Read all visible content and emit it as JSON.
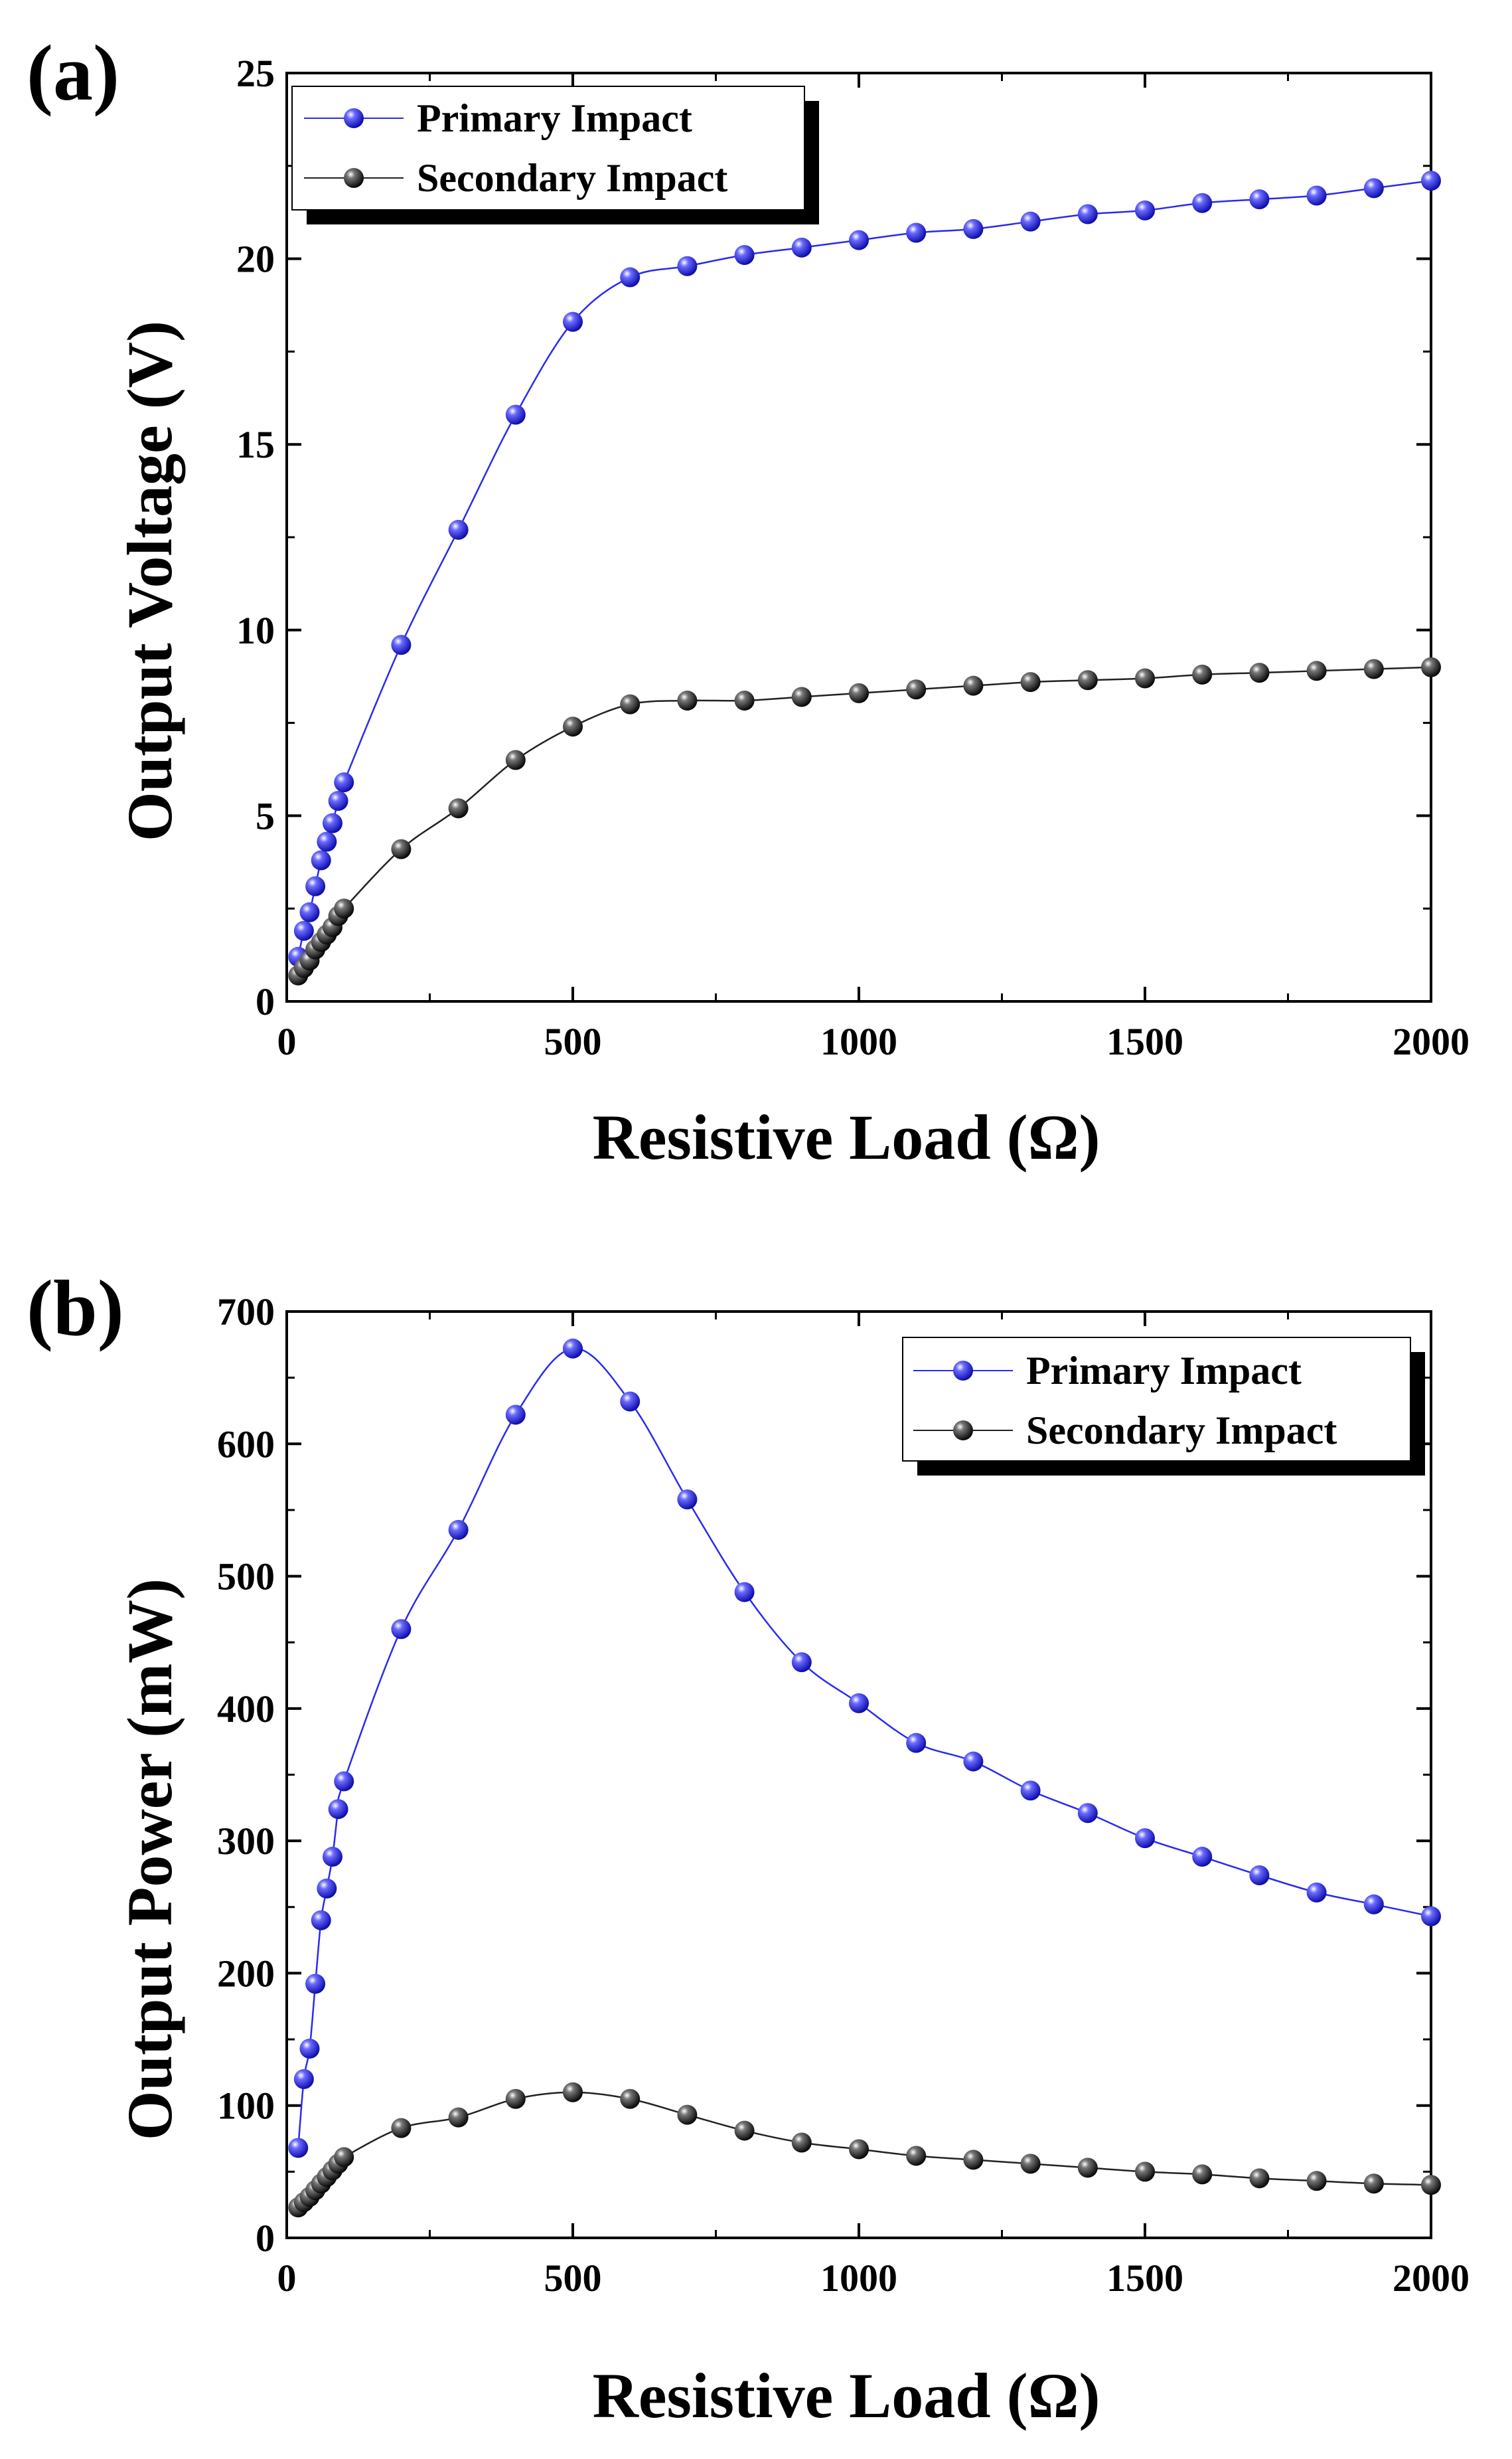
{
  "chart_data": [
    {
      "type": "line",
      "panel_label": "(a)",
      "xlabel": "Resistive Load (Ω)",
      "ylabel": "Output Voltage (V)",
      "xlim": [
        0,
        2000
      ],
      "ylim": [
        0,
        25
      ],
      "x_ticks": [
        0,
        500,
        1000,
        1500,
        2000
      ],
      "y_ticks": [
        0,
        5,
        10,
        15,
        20,
        25
      ],
      "grid": false,
      "legend_position": "top-left",
      "x": [
        20,
        30,
        40,
        50,
        60,
        70,
        80,
        90,
        100,
        200,
        300,
        400,
        500,
        600,
        700,
        800,
        900,
        1000,
        1100,
        1200,
        1300,
        1400,
        1500,
        1600,
        1700,
        1800,
        1900,
        2000
      ],
      "series": [
        {
          "name": "Primary Impact",
          "color": "#2a2af0",
          "values": [
            1.2,
            1.9,
            2.4,
            3.1,
            3.8,
            4.3,
            4.8,
            5.4,
            5.9,
            9.6,
            12.7,
            15.8,
            18.3,
            19.5,
            19.8,
            20.1,
            20.3,
            20.5,
            20.7,
            20.8,
            21.0,
            21.2,
            21.3,
            21.5,
            21.6,
            21.7,
            21.9,
            22.1
          ]
        },
        {
          "name": "Secondary Impact",
          "color": "#222222",
          "values": [
            0.7,
            0.9,
            1.1,
            1.4,
            1.6,
            1.8,
            2.0,
            2.3,
            2.5,
            4.1,
            5.2,
            6.5,
            7.4,
            8.0,
            8.1,
            8.1,
            8.2,
            8.3,
            8.4,
            8.5,
            8.6,
            8.65,
            8.7,
            8.8,
            8.85,
            8.9,
            8.95,
            9.0
          ]
        }
      ]
    },
    {
      "type": "line",
      "panel_label": "(b)",
      "xlabel": "Resistive Load (Ω)",
      "ylabel": "Output Power (mW)",
      "xlim": [
        0,
        2000
      ],
      "ylim": [
        0,
        700
      ],
      "x_ticks": [
        0,
        500,
        1000,
        1500,
        2000
      ],
      "y_ticks": [
        0,
        100,
        200,
        300,
        400,
        500,
        600,
        700
      ],
      "grid": false,
      "legend_position": "top-right",
      "x": [
        20,
        30,
        40,
        50,
        60,
        70,
        80,
        90,
        100,
        200,
        300,
        400,
        500,
        600,
        700,
        800,
        900,
        1000,
        1100,
        1200,
        1300,
        1400,
        1500,
        1600,
        1700,
        1800,
        1900,
        2000
      ],
      "series": [
        {
          "name": "Primary Impact",
          "color": "#2a2af0",
          "values": [
            68,
            120,
            143,
            192,
            240,
            264,
            288,
            324,
            345,
            460,
            535,
            622,
            672,
            632,
            558,
            488,
            435,
            404,
            374,
            360,
            338,
            321,
            302,
            288,
            274,
            261,
            252,
            243
          ]
        },
        {
          "name": "Secondary Impact",
          "color": "#222222",
          "values": [
            23,
            27,
            31,
            36,
            41,
            46,
            51,
            56,
            61,
            83,
            91,
            105,
            110,
            105,
            93,
            81,
            72,
            67,
            62,
            59,
            56,
            53,
            50,
            48,
            45,
            43,
            41,
            40
          ]
        }
      ]
    }
  ]
}
